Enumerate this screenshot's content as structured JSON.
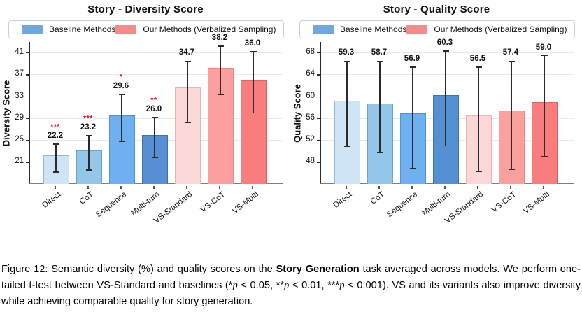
{
  "style": {
    "baseline_color": "#6fa8dc",
    "ours_color": "#f58b8b",
    "bar_fill": [
      "#cfe4f4",
      "#94c7e7",
      "#6fb0f0",
      "#5590d2",
      "#fdd8d8",
      "#fba09f",
      "#f97d7d"
    ],
    "bar_edge": [
      "#8fb9d9",
      "#69a5c9",
      "#4f93dd",
      "#3c70b0",
      "#f4b0af",
      "#e98886",
      "#e25f5f"
    ],
    "error_color": "#2b2b2b",
    "star_color": "#e8000b",
    "grid_color": "#e9e9e9"
  },
  "chart_data": [
    {
      "type": "bar",
      "title": "Story - Diversity Score",
      "ylabel": "Diversity Score",
      "categories": [
        "Direct",
        "CoT",
        "Sequence",
        "Multi-turn",
        "VS-Standard",
        "VS-CoT",
        "VS-Multi"
      ],
      "values": [
        22.2,
        23.2,
        29.6,
        26.0,
        34.7,
        38.2,
        36.0
      ],
      "err_low": [
        19.2,
        19.6,
        24.8,
        21.8,
        28.3,
        33.4,
        30.0
      ],
      "err_high": [
        24.3,
        25.9,
        33.4,
        29.2,
        39.5,
        42.2,
        41.2
      ],
      "significance": [
        "***",
        "***",
        "*",
        "**",
        "",
        "",
        ""
      ],
      "group": [
        "baseline",
        "baseline",
        "baseline",
        "baseline",
        "ours",
        "ours",
        "ours"
      ],
      "yticks": [
        21,
        25,
        29,
        33,
        37,
        41
      ],
      "ylim": [
        17,
        43
      ],
      "grid": true,
      "legend_position": "top",
      "legend": [
        {
          "label": "Baseline Methods",
          "color": "#6fa8dc"
        },
        {
          "label": "Our Methods (Verbalized Sampling)",
          "color": "#f58b8b"
        }
      ]
    },
    {
      "type": "bar",
      "title": "Story - Quality Score",
      "ylabel": "Quality Score",
      "categories": [
        "Direct",
        "CoT",
        "Sequence",
        "Multi-turn",
        "VS-Standard",
        "VS-CoT",
        "VS-Multi"
      ],
      "values": [
        59.3,
        58.7,
        56.9,
        60.3,
        56.5,
        57.4,
        59.0
      ],
      "err_low": [
        50.9,
        49.8,
        46.9,
        51.0,
        46.3,
        46.7,
        49.0
      ],
      "err_high": [
        66.5,
        66.5,
        65.4,
        68.3,
        65.4,
        66.5,
        67.5
      ],
      "significance": [
        "",
        "",
        "",
        "",
        "",
        "",
        ""
      ],
      "group": [
        "baseline",
        "baseline",
        "baseline",
        "baseline",
        "ours",
        "ours",
        "ours"
      ],
      "yticks": [
        48,
        52,
        56,
        60,
        64,
        68
      ],
      "ylim": [
        44,
        70
      ],
      "grid": true,
      "legend_position": "top",
      "legend": [
        {
          "label": "Baseline Methods",
          "color": "#6fa8dc"
        },
        {
          "label": "Our Methods (Verbalized Sampling)",
          "color": "#f58b8b"
        }
      ]
    }
  ],
  "caption": {
    "s1": "Figure 12:  Semantic diversity (%) and quality scores on the ",
    "b1": "Story Generation",
    "s2": " task averaged across models. We perform one-tailed t-test between VS-Standard and baselines (*",
    "p1": "p",
    "s3": " < 0.05, **",
    "p2": "p",
    "s4": " < 0.01, ***",
    "p3": "p",
    "s5": " < 0.001). VS and its variants also improve diversity while achieving comparable quality for story generation."
  }
}
